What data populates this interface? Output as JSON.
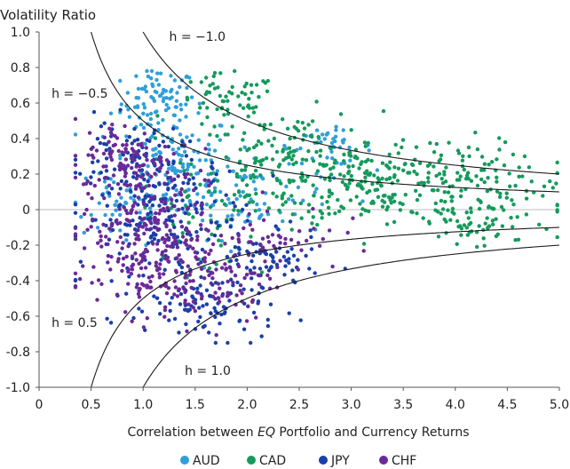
{
  "chart_data": {
    "type": "scatter",
    "title": "",
    "ylabel": "Volatility Ratio",
    "xlabel": "Correlation between EQ Portfolio and Currency Returns",
    "xlim": [
      0,
      5.0
    ],
    "ylim": [
      -1.0,
      1.0
    ],
    "xticks": [
      "0",
      "0.5",
      "1.0",
      "1.5",
      "2.0",
      "2.5",
      "3.0",
      "3.5",
      "4.0",
      "4.5",
      "5.0"
    ],
    "yticks": [
      "1.0",
      "0.8",
      "0.6",
      "0.4",
      "0.2",
      "0",
      "-0.2",
      "-0.4",
      "-0.6",
      "-0.8",
      "-1.0"
    ],
    "grid": false,
    "legend_position": "bottom-center",
    "reference_curves": [
      {
        "label": "h = −1.0",
        "h": -1.0
      },
      {
        "label": "h = −0.5",
        "h": -0.5
      },
      {
        "label": "h = 0.5",
        "h": 0.5
      },
      {
        "label": "h = 1.0",
        "h": 1.0
      }
    ],
    "series": [
      {
        "name": "AUD",
        "color": "#2f9fd8",
        "clusters": [
          {
            "x": 1.15,
            "y": 0.6,
            "sx": 0.18,
            "sy": 0.1,
            "n": 90
          },
          {
            "x": 1.3,
            "y": 0.25,
            "sx": 0.3,
            "sy": 0.15,
            "n": 110
          },
          {
            "x": 2.0,
            "y": 0.08,
            "sx": 0.4,
            "sy": 0.12,
            "n": 90
          },
          {
            "x": 2.8,
            "y": 0.35,
            "sx": 0.2,
            "sy": 0.05,
            "n": 40
          },
          {
            "x": 0.8,
            "y": 0.05,
            "sx": 0.25,
            "sy": 0.15,
            "n": 50
          }
        ]
      },
      {
        "name": "CAD",
        "color": "#159a5c",
        "clusters": [
          {
            "x": 1.8,
            "y": 0.6,
            "sx": 0.25,
            "sy": 0.08,
            "n": 60
          },
          {
            "x": 2.4,
            "y": 0.25,
            "sx": 0.45,
            "sy": 0.15,
            "n": 170
          },
          {
            "x": 3.2,
            "y": 0.15,
            "sx": 0.4,
            "sy": 0.12,
            "n": 140
          },
          {
            "x": 4.0,
            "y": 0.2,
            "sx": 0.3,
            "sy": 0.1,
            "n": 90
          },
          {
            "x": 4.2,
            "y": -0.08,
            "sx": 0.35,
            "sy": 0.08,
            "n": 70
          },
          {
            "x": 4.8,
            "y": 0.1,
            "sx": 0.15,
            "sy": 0.08,
            "n": 20
          },
          {
            "x": 1.6,
            "y": -0.05,
            "sx": 0.3,
            "sy": 0.15,
            "n": 40
          }
        ]
      },
      {
        "name": "JPY",
        "color": "#1b3fa8",
        "clusters": [
          {
            "x": 1.2,
            "y": -0.05,
            "sx": 0.4,
            "sy": 0.2,
            "n": 220
          },
          {
            "x": 1.7,
            "y": -0.55,
            "sx": 0.3,
            "sy": 0.1,
            "n": 90
          },
          {
            "x": 2.2,
            "y": -0.3,
            "sx": 0.25,
            "sy": 0.08,
            "n": 60
          },
          {
            "x": 0.9,
            "y": 0.3,
            "sx": 0.25,
            "sy": 0.1,
            "n": 60
          }
        ]
      },
      {
        "name": "CHF",
        "color": "#6a2a97",
        "clusters": [
          {
            "x": 1.0,
            "y": -0.1,
            "sx": 0.3,
            "sy": 0.22,
            "n": 260
          },
          {
            "x": 1.6,
            "y": -0.4,
            "sx": 0.35,
            "sy": 0.12,
            "n": 110
          },
          {
            "x": 0.8,
            "y": 0.3,
            "sx": 0.2,
            "sy": 0.1,
            "n": 70
          },
          {
            "x": 2.3,
            "y": -0.15,
            "sx": 0.3,
            "sy": 0.1,
            "n": 50
          }
        ]
      }
    ]
  }
}
